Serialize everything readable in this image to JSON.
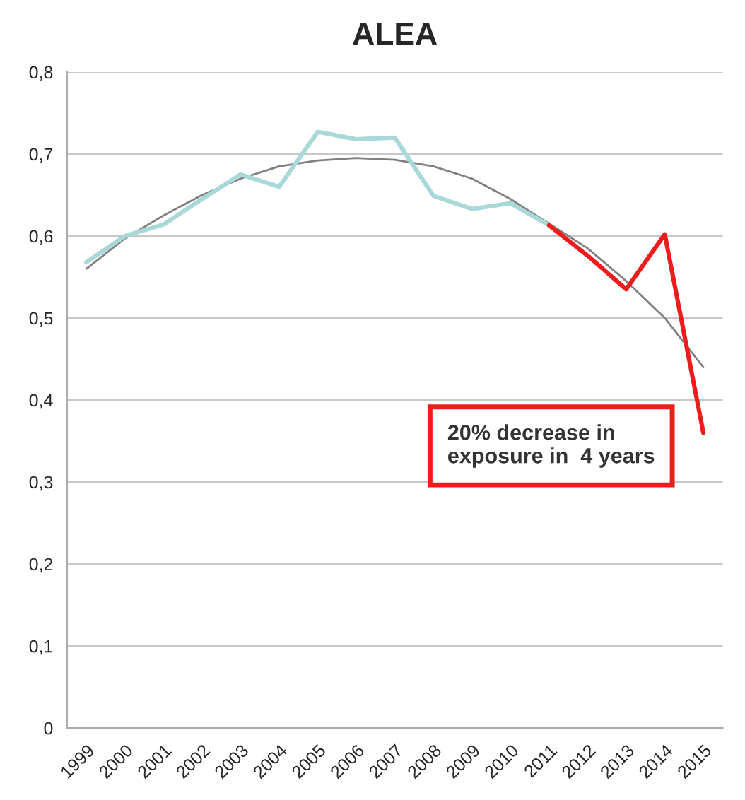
{
  "chart_data": {
    "type": "line",
    "title": "ALEA",
    "categories": [
      "1999",
      "2000",
      "2001",
      "2002",
      "2003",
      "2004",
      "2005",
      "2006",
      "2007",
      "2008",
      "2009",
      "2010",
      "2011",
      "2012",
      "2013",
      "2014",
      "2015"
    ],
    "series": [
      {
        "color": "#808080",
        "values": [
          0.56,
          0.597,
          0.625,
          0.65,
          0.67,
          0.685,
          0.692,
          0.695,
          0.693,
          0.685,
          0.67,
          0.645,
          0.615,
          0.585,
          0.545,
          0.5,
          0.44
        ]
      },
      {
        "color": "#a9d8d8",
        "values": [
          0.568,
          0.6,
          0.614,
          0.645,
          0.675,
          0.66,
          0.727,
          0.718,
          0.72,
          0.649,
          0.633,
          0.64,
          0.613,
          null,
          null,
          null,
          null
        ]
      },
      {
        "color": "#ee1c1c",
        "values": [
          null,
          null,
          null,
          null,
          null,
          null,
          null,
          null,
          null,
          null,
          null,
          null,
          0.613,
          0.576,
          0.535,
          0.602,
          0.36
        ]
      }
    ],
    "ylim": [
      0,
      0.8
    ],
    "yticks": [
      {
        "value": 0,
        "label": "0"
      },
      {
        "value": 0.1,
        "label": "0,1"
      },
      {
        "value": 0.2,
        "label": "0,2"
      },
      {
        "value": 0.3,
        "label": "0,3"
      },
      {
        "value": 0.4,
        "label": "0,4"
      },
      {
        "value": 0.5,
        "label": "0,5"
      },
      {
        "value": 0.6,
        "label": "0,6"
      },
      {
        "value": 0.7,
        "label": "0,7"
      },
      {
        "value": 0.8,
        "label": "0,8"
      }
    ],
    "grid": "y",
    "annotations": [
      "20% decrease in\nexposure in  4 years"
    ]
  }
}
